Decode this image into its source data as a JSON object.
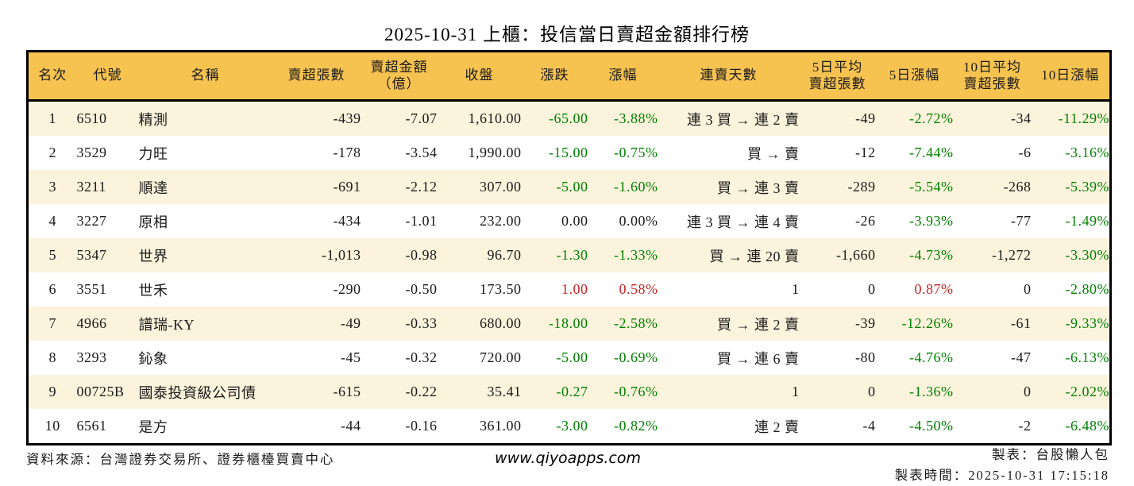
{
  "title": "2025-10-31 上櫃：投信當日賣超金額排行榜",
  "colors": {
    "header_bg": "#f6c351",
    "stripe_bg": "#fcf3dc",
    "up_red": "#cc2222",
    "down_green": "#008000",
    "border_black": "#000000"
  },
  "table": {
    "columns": [
      {
        "key": "rank",
        "label": "名次"
      },
      {
        "key": "code",
        "label": "代號"
      },
      {
        "key": "name",
        "label": "名稱"
      },
      {
        "key": "vol",
        "label": "賣超張數"
      },
      {
        "key": "amt",
        "label": "賣超金額\n（億）"
      },
      {
        "key": "close",
        "label": "收盤"
      },
      {
        "key": "chg",
        "label": "漲跌"
      },
      {
        "key": "chg_pct",
        "label": "漲幅"
      },
      {
        "key": "streak",
        "label": "連賣天數"
      },
      {
        "key": "avg5",
        "label": "5日平均\n賣超張數"
      },
      {
        "key": "pct5",
        "label": "5日漲幅"
      },
      {
        "key": "avg10",
        "label": "10日平均\n賣超張數"
      },
      {
        "key": "pct10",
        "label": "10日漲幅"
      }
    ],
    "rows": [
      {
        "rank": "1",
        "code": "6510",
        "name": "精測",
        "vol": "-439",
        "amt": "-7.07",
        "close": "1,610.00",
        "chg": "-65.00",
        "chg_pct": "-3.88%",
        "chg_dir": "down",
        "streak": "連 3 買 → 連 2 賣",
        "avg5": "-49",
        "pct5": "-2.72%",
        "pct5_dir": "down",
        "avg10": "-34",
        "pct10": "-11.29%",
        "pct10_dir": "down"
      },
      {
        "rank": "2",
        "code": "3529",
        "name": "力旺",
        "vol": "-178",
        "amt": "-3.54",
        "close": "1,990.00",
        "chg": "-15.00",
        "chg_pct": "-0.75%",
        "chg_dir": "down",
        "streak": "買 → 賣",
        "avg5": "-12",
        "pct5": "-7.44%",
        "pct5_dir": "down",
        "avg10": "-6",
        "pct10": "-3.16%",
        "pct10_dir": "down"
      },
      {
        "rank": "3",
        "code": "3211",
        "name": "順達",
        "vol": "-691",
        "amt": "-2.12",
        "close": "307.00",
        "chg": "-5.00",
        "chg_pct": "-1.60%",
        "chg_dir": "down",
        "streak": "買 → 連 3 賣",
        "avg5": "-289",
        "pct5": "-5.54%",
        "pct5_dir": "down",
        "avg10": "-268",
        "pct10": "-5.39%",
        "pct10_dir": "down"
      },
      {
        "rank": "4",
        "code": "3227",
        "name": "原相",
        "vol": "-434",
        "amt": "-1.01",
        "close": "232.00",
        "chg": "0.00",
        "chg_pct": "0.00%",
        "chg_dir": "flat",
        "streak": "連 3 買 → 連 4 賣",
        "avg5": "-26",
        "pct5": "-3.93%",
        "pct5_dir": "down",
        "avg10": "-77",
        "pct10": "-1.49%",
        "pct10_dir": "down"
      },
      {
        "rank": "5",
        "code": "5347",
        "name": "世界",
        "vol": "-1,013",
        "amt": "-0.98",
        "close": "96.70",
        "chg": "-1.30",
        "chg_pct": "-1.33%",
        "chg_dir": "down",
        "streak": "買 → 連 20 賣",
        "avg5": "-1,660",
        "pct5": "-4.73%",
        "pct5_dir": "down",
        "avg10": "-1,272",
        "pct10": "-3.30%",
        "pct10_dir": "down"
      },
      {
        "rank": "6",
        "code": "3551",
        "name": "世禾",
        "vol": "-290",
        "amt": "-0.50",
        "close": "173.50",
        "chg": "1.00",
        "chg_pct": "0.58%",
        "chg_dir": "up",
        "streak": "1",
        "avg5": "0",
        "pct5": "0.87%",
        "pct5_dir": "up",
        "avg10": "0",
        "pct10": "-2.80%",
        "pct10_dir": "down"
      },
      {
        "rank": "7",
        "code": "4966",
        "name": "譜瑞-KY",
        "vol": "-49",
        "amt": "-0.33",
        "close": "680.00",
        "chg": "-18.00",
        "chg_pct": "-2.58%",
        "chg_dir": "down",
        "streak": "買 → 連 2 賣",
        "avg5": "-39",
        "pct5": "-12.26%",
        "pct5_dir": "down",
        "avg10": "-61",
        "pct10": "-9.33%",
        "pct10_dir": "down"
      },
      {
        "rank": "8",
        "code": "3293",
        "name": "鈊象",
        "vol": "-45",
        "amt": "-0.32",
        "close": "720.00",
        "chg": "-5.00",
        "chg_pct": "-0.69%",
        "chg_dir": "down",
        "streak": "買 → 連 6 賣",
        "avg5": "-80",
        "pct5": "-4.76%",
        "pct5_dir": "down",
        "avg10": "-47",
        "pct10": "-6.13%",
        "pct10_dir": "down"
      },
      {
        "rank": "9",
        "code": "00725B",
        "name": "國泰投資級公司債",
        "vol": "-615",
        "amt": "-0.22",
        "close": "35.41",
        "chg": "-0.27",
        "chg_pct": "-0.76%",
        "chg_dir": "down",
        "streak": "1",
        "avg5": "0",
        "pct5": "-1.36%",
        "pct5_dir": "down",
        "avg10": "0",
        "pct10": "-2.02%",
        "pct10_dir": "down"
      },
      {
        "rank": "10",
        "code": "6561",
        "name": "是方",
        "vol": "-44",
        "amt": "-0.16",
        "close": "361.00",
        "chg": "-3.00",
        "chg_pct": "-0.82%",
        "chg_dir": "down",
        "streak": "連 2 賣",
        "avg5": "-4",
        "pct5": "-4.50%",
        "pct5_dir": "down",
        "avg10": "-2",
        "pct10": "-6.48%",
        "pct10_dir": "down"
      }
    ]
  },
  "footer": {
    "source": "資料來源：台灣證券交易所、證券櫃檯買賣中心",
    "website": "www.qiyoapps.com",
    "maker": "製表：台股懶人包",
    "time": "製表時間：2025-10-31 17:15:18"
  }
}
